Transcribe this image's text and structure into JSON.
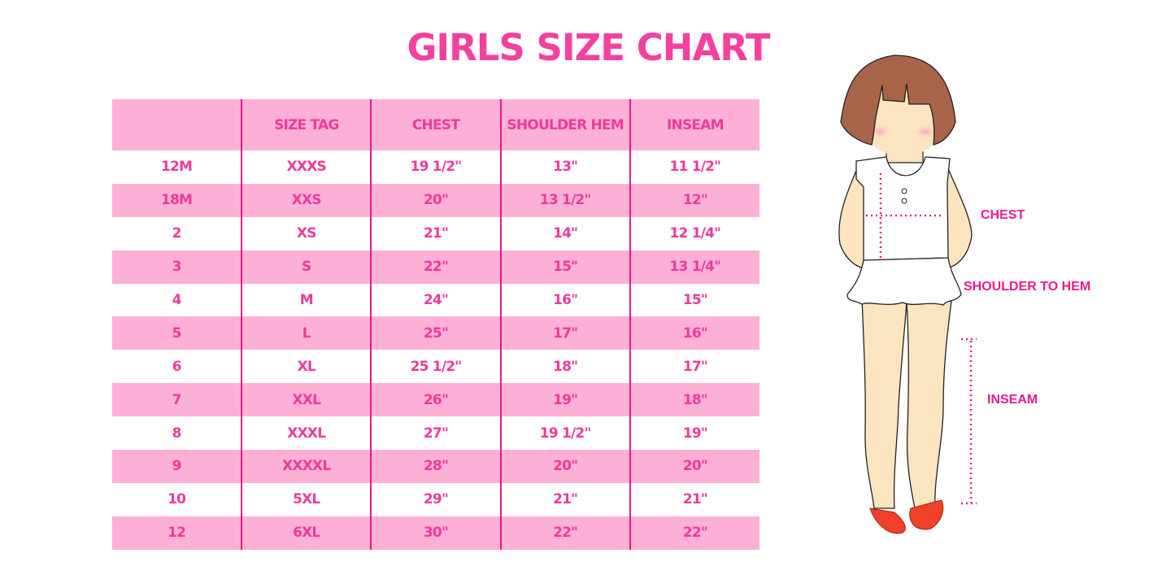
{
  "title": "GIRLS SIZE CHART",
  "table": {
    "headers": [
      "",
      "SIZE TAG",
      "CHEST",
      "SHOULDER HEM",
      "INSEAM"
    ],
    "rows": [
      [
        "12M",
        "XXXS",
        "19 1/2\"",
        "13\"",
        "11 1/2\""
      ],
      [
        "18M",
        "XXS",
        "20\"",
        "13 1/2\"",
        "12\""
      ],
      [
        "2",
        "XS",
        "21\"",
        "14\"",
        "12 1/4\""
      ],
      [
        "3",
        "S",
        "22\"",
        "15\"",
        "13 1/4\""
      ],
      [
        "4",
        "M",
        "24\"",
        "16\"",
        "15\""
      ],
      [
        "5",
        "L",
        "25\"",
        "17\"",
        "16\""
      ],
      [
        "6",
        "XL",
        "25 1/2\"",
        "18\"",
        "17\""
      ],
      [
        "7",
        "XXL",
        "26\"",
        "19\"",
        "18\""
      ],
      [
        "8",
        "XXXL",
        "27\"",
        "19 1/2\"",
        "19\""
      ],
      [
        "9",
        "XXXXL",
        "28\"",
        "20\"",
        "20\""
      ],
      [
        "10",
        "5XL",
        "29\"",
        "21\"",
        "21\""
      ],
      [
        "12",
        "6XL",
        "30\"",
        "22\"",
        "22\""
      ]
    ]
  },
  "figure": {
    "labels": {
      "chest": "CHEST",
      "shoulder_to_hem": "SHOULDER TO HEM",
      "inseam": "INSEAM"
    }
  },
  "colors": {
    "accent": "#f0399b",
    "row_pink": "#fdb0d6",
    "divider": "#e8178f"
  }
}
